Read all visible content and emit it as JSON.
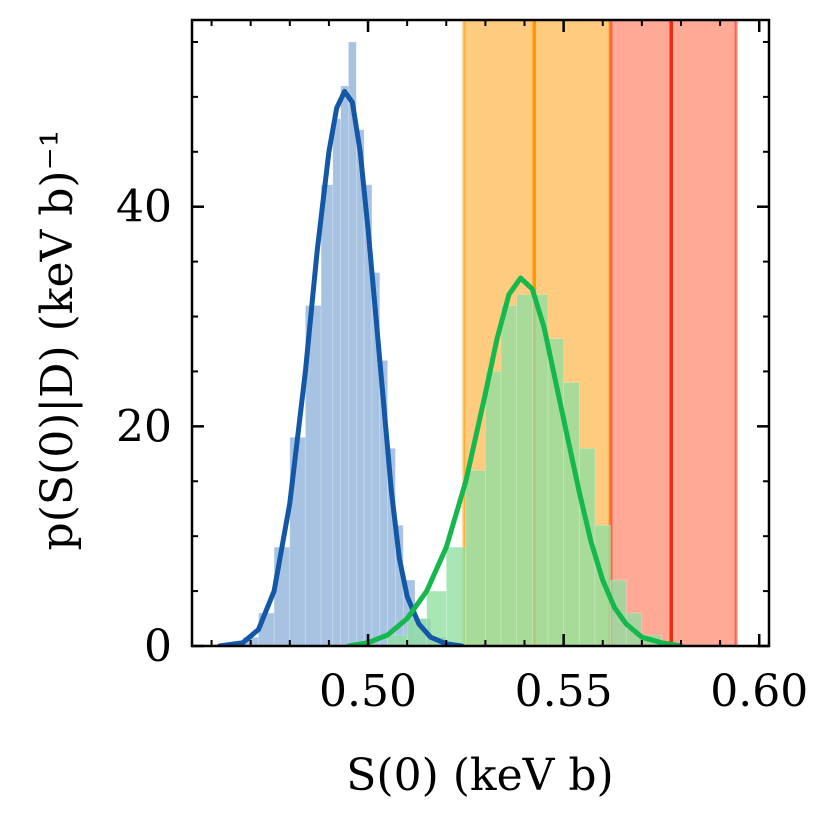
{
  "chart_data": {
    "type": "histogram+density",
    "xlabel": "S(0) (keV b)",
    "ylabel": "p(S(0)|D) (keV b)⁻¹",
    "xlim": [
      0.455,
      0.6025
    ],
    "ylim": [
      0,
      57
    ],
    "x_ticks": [
      0.5,
      0.55,
      0.6
    ],
    "x_tick_labels": [
      "0.50",
      "0.55",
      "0.60"
    ],
    "y_ticks": [
      0,
      20,
      40
    ],
    "y_tick_labels": [
      "0",
      "20",
      "40"
    ],
    "bands": [
      {
        "name": "orange-band",
        "center": 0.5425,
        "low": 0.5245,
        "high": 0.5618,
        "fill": "#ffa520",
        "line": "#ff9800"
      },
      {
        "name": "red-band",
        "center": 0.5775,
        "low": 0.5621,
        "high": 0.5941,
        "fill": "#ff6a4a",
        "line": "#f02a0c"
      }
    ],
    "series": [
      {
        "name": "blue-posterior",
        "color": "#1258a6",
        "fill": "#8fb2d8",
        "density": {
          "x": [
            0.462,
            0.468,
            0.472,
            0.476,
            0.48,
            0.484,
            0.487,
            0.49,
            0.492,
            0.494,
            0.496,
            0.498,
            0.5,
            0.502,
            0.504,
            0.506,
            0.508,
            0.51,
            0.513,
            0.516,
            0.52,
            0.524
          ],
          "y": [
            0,
            0.3,
            1.5,
            5,
            13,
            25,
            36,
            45,
            49,
            50.5,
            49.5,
            45,
            38,
            30,
            22,
            14,
            8,
            4.5,
            2,
            0.8,
            0.2,
            0
          ]
        },
        "histogram": {
          "bin_edges": [
            0.468,
            0.472,
            0.476,
            0.48,
            0.484,
            0.488,
            0.491,
            0.493,
            0.495,
            0.497,
            0.499,
            0.501,
            0.503,
            0.505,
            0.507,
            0.509,
            0.512,
            0.516,
            0.52
          ],
          "counts": [
            0.8,
            3,
            9,
            19,
            31,
            42,
            48,
            51,
            55,
            47,
            42,
            34,
            26,
            18,
            11,
            6,
            2.5,
            0.8
          ]
        }
      },
      {
        "name": "green-posterior",
        "color": "#14b84c",
        "fill": "#8fdfa2",
        "density": {
          "x": [
            0.495,
            0.5,
            0.505,
            0.51,
            0.515,
            0.52,
            0.525,
            0.53,
            0.533,
            0.536,
            0.539,
            0.542,
            0.545,
            0.548,
            0.551,
            0.554,
            0.557,
            0.56,
            0.563,
            0.566,
            0.57,
            0.575,
            0.58
          ],
          "y": [
            0,
            0.3,
            1,
            2.5,
            5,
            9,
            15,
            23,
            28,
            32,
            33.5,
            32.5,
            29,
            24,
            19,
            14,
            9.5,
            6,
            3.5,
            2,
            0.8,
            0.3,
            0
          ]
        },
        "histogram": {
          "bin_edges": [
            0.505,
            0.51,
            0.515,
            0.52,
            0.525,
            0.53,
            0.534,
            0.538,
            0.542,
            0.546,
            0.55,
            0.554,
            0.558,
            0.562,
            0.566,
            0.57,
            0.575
          ],
          "counts": [
            1,
            2.5,
            5,
            9,
            16,
            25,
            31,
            32,
            32,
            28,
            24,
            18,
            11,
            6,
            3,
            1
          ]
        }
      }
    ]
  }
}
